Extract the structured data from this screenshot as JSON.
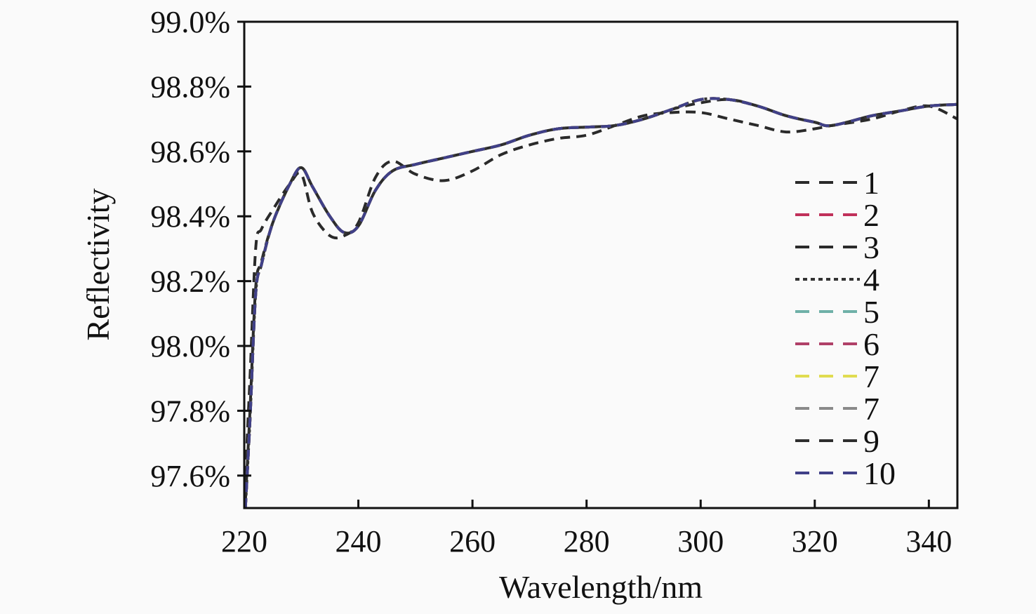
{
  "chart_data": {
    "type": "line",
    "title": "",
    "xlabel": "Wavelength/nm",
    "ylabel": "Reflectivity",
    "xlim": [
      220,
      345
    ],
    "ylim": [
      97.5,
      99.0
    ],
    "x_ticks": [
      220,
      240,
      260,
      280,
      300,
      320,
      340
    ],
    "y_ticks": [
      97.6,
      97.8,
      98.0,
      98.2,
      98.4,
      98.6,
      98.8,
      99.0
    ],
    "y_tick_labels": [
      "97.6%",
      "97.8%",
      "98.0%",
      "98.2%",
      "98.4%",
      "98.6%",
      "98.8%",
      "99.0%"
    ],
    "grid": false,
    "legend_position": "right",
    "line_style": "dashed",
    "x": [
      220.2,
      221,
      222,
      223,
      225,
      228,
      230,
      232,
      235,
      237.5,
      240,
      243,
      246,
      250,
      255,
      260,
      265,
      270,
      275,
      280,
      285,
      290,
      295,
      300,
      305,
      310,
      315,
      320,
      323,
      330,
      335,
      340,
      345
    ],
    "series": [
      {
        "name": "1",
        "color": "#2a2a2a",
        "dash": "dashed",
        "values": [
          97.6,
          97.9,
          98.3,
          98.36,
          98.42,
          98.5,
          98.53,
          98.41,
          98.34,
          98.34,
          98.38,
          98.52,
          98.57,
          98.53,
          98.51,
          98.54,
          98.59,
          98.62,
          98.64,
          98.65,
          98.68,
          98.71,
          98.72,
          98.72,
          98.7,
          98.68,
          98.66,
          98.67,
          98.68,
          98.7,
          98.725,
          98.74,
          98.7
        ]
      },
      {
        "name": "2",
        "color": "#c0305a",
        "dash": "dashed",
        "values": [
          97.5,
          97.77,
          98.16,
          98.25,
          98.38,
          98.5,
          98.55,
          98.49,
          98.4,
          98.35,
          98.37,
          98.48,
          98.54,
          98.56,
          98.58,
          98.6,
          98.62,
          98.65,
          98.67,
          98.675,
          98.68,
          98.7,
          98.73,
          98.76,
          98.76,
          98.74,
          98.71,
          98.69,
          98.68,
          98.71,
          98.725,
          98.74,
          98.745
        ]
      },
      {
        "name": "3",
        "color": "#2a2a2a",
        "dash": "dashed",
        "values": [
          97.52,
          97.8,
          98.18,
          98.26,
          98.38,
          98.5,
          98.55,
          98.49,
          98.4,
          98.35,
          98.37,
          98.48,
          98.54,
          98.56,
          98.58,
          98.6,
          98.62,
          98.65,
          98.67,
          98.675,
          98.68,
          98.7,
          98.73,
          98.75,
          98.76,
          98.74,
          98.71,
          98.69,
          98.68,
          98.71,
          98.725,
          98.74,
          98.745
        ]
      },
      {
        "name": "4",
        "color": "#333333",
        "dash": "dotted",
        "values": [
          97.5,
          97.77,
          98.16,
          98.25,
          98.38,
          98.5,
          98.55,
          98.49,
          98.4,
          98.35,
          98.37,
          98.48,
          98.54,
          98.56,
          98.58,
          98.6,
          98.62,
          98.65,
          98.67,
          98.675,
          98.68,
          98.7,
          98.73,
          98.76,
          98.76,
          98.74,
          98.71,
          98.69,
          98.68,
          98.71,
          98.725,
          98.74,
          98.745
        ]
      },
      {
        "name": "5",
        "color": "#6fb0a8",
        "dash": "dashed",
        "values": [
          97.5,
          97.77,
          98.16,
          98.25,
          98.38,
          98.5,
          98.55,
          98.49,
          98.4,
          98.35,
          98.37,
          98.48,
          98.54,
          98.56,
          98.58,
          98.6,
          98.62,
          98.65,
          98.67,
          98.675,
          98.68,
          98.7,
          98.73,
          98.76,
          98.76,
          98.74,
          98.71,
          98.69,
          98.68,
          98.71,
          98.725,
          98.74,
          98.745
        ]
      },
      {
        "name": "6",
        "color": "#b04068",
        "dash": "dashed",
        "values": [
          97.5,
          97.77,
          98.16,
          98.25,
          98.38,
          98.5,
          98.55,
          98.49,
          98.4,
          98.35,
          98.37,
          98.48,
          98.54,
          98.56,
          98.58,
          98.6,
          98.62,
          98.65,
          98.67,
          98.675,
          98.68,
          98.7,
          98.73,
          98.76,
          98.76,
          98.74,
          98.71,
          98.69,
          98.68,
          98.71,
          98.725,
          98.74,
          98.745
        ]
      },
      {
        "name": "7",
        "color": "#e0dc50",
        "dash": "dashed",
        "values": [
          97.5,
          97.77,
          98.16,
          98.25,
          98.38,
          98.5,
          98.55,
          98.49,
          98.4,
          98.35,
          98.37,
          98.48,
          98.54,
          98.56,
          98.58,
          98.6,
          98.62,
          98.65,
          98.67,
          98.675,
          98.68,
          98.7,
          98.73,
          98.76,
          98.76,
          98.74,
          98.71,
          98.69,
          98.68,
          98.71,
          98.725,
          98.74,
          98.745
        ]
      },
      {
        "name": "7",
        "color": "#8a8a8a",
        "dash": "dashed",
        "values": [
          97.5,
          97.77,
          98.16,
          98.25,
          98.38,
          98.5,
          98.55,
          98.49,
          98.4,
          98.35,
          98.37,
          98.48,
          98.54,
          98.56,
          98.58,
          98.6,
          98.62,
          98.65,
          98.67,
          98.675,
          98.68,
          98.7,
          98.73,
          98.76,
          98.76,
          98.74,
          98.71,
          98.69,
          98.68,
          98.71,
          98.725,
          98.74,
          98.745
        ]
      },
      {
        "name": "9",
        "color": "#2e2e2e",
        "dash": "dashed",
        "values": [
          97.5,
          97.77,
          98.16,
          98.25,
          98.38,
          98.5,
          98.55,
          98.49,
          98.4,
          98.35,
          98.37,
          98.48,
          98.54,
          98.56,
          98.58,
          98.6,
          98.62,
          98.65,
          98.67,
          98.675,
          98.68,
          98.7,
          98.73,
          98.76,
          98.76,
          98.74,
          98.71,
          98.69,
          98.68,
          98.71,
          98.725,
          98.74,
          98.745
        ]
      },
      {
        "name": "10",
        "color": "#404088",
        "dash": "dashed",
        "values": [
          97.5,
          97.77,
          98.16,
          98.25,
          98.38,
          98.5,
          98.55,
          98.49,
          98.4,
          98.35,
          98.37,
          98.48,
          98.54,
          98.56,
          98.58,
          98.6,
          98.62,
          98.65,
          98.67,
          98.675,
          98.68,
          98.7,
          98.73,
          98.76,
          98.76,
          98.74,
          98.71,
          98.69,
          98.68,
          98.71,
          98.725,
          98.74,
          98.745
        ]
      }
    ]
  }
}
